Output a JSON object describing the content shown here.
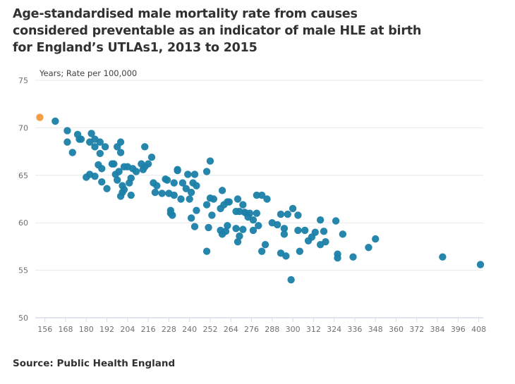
{
  "chart_data": {
    "type": "scatter",
    "title": "Age-standardised male mortality rate from causes considered preventable as an indicator of male HLE at birth for England’s UTLAs1, 2013 to 2015",
    "ylabel": "Years; Rate per 100,000",
    "xlabel": "",
    "xlim": [
      150,
      410
    ],
    "ylim": [
      50,
      75
    ],
    "x_ticks": [
      156,
      168,
      180,
      192,
      204,
      216,
      228,
      240,
      252,
      264,
      276,
      288,
      300,
      312,
      324,
      336,
      348,
      360,
      372,
      384,
      396,
      408
    ],
    "y_ticks": [
      50,
      55,
      60,
      65,
      70,
      75
    ],
    "grid": "horizontal",
    "colors": {
      "main": "#1b7fa8",
      "highlight": "#f39a3b"
    },
    "series": [
      {
        "color": "#f39a3b",
        "points": [
          [
            153,
            71.1
          ]
        ]
      },
      {
        "color": "#1b7fa8",
        "points": [
          [
            162,
            70.7
          ],
          [
            169,
            69.7
          ],
          [
            169,
            68.5
          ],
          [
            172,
            67.4
          ],
          [
            175,
            69.3
          ],
          [
            176,
            68.8
          ],
          [
            177,
            68.8
          ],
          [
            183,
            69.4
          ],
          [
            182,
            68.5
          ],
          [
            185,
            68.8
          ],
          [
            185,
            68.0
          ],
          [
            188,
            68.5
          ],
          [
            188,
            67.3
          ],
          [
            191,
            68.0
          ],
          [
            200,
            68.5
          ],
          [
            198,
            68.0
          ],
          [
            200,
            67.4
          ],
          [
            196,
            66.2
          ],
          [
            195,
            66.2
          ],
          [
            187,
            66.1
          ],
          [
            189,
            65.7
          ],
          [
            180,
            64.8
          ],
          [
            182,
            65.1
          ],
          [
            185,
            64.9
          ],
          [
            189,
            64.3
          ],
          [
            192,
            63.6
          ],
          [
            197,
            65.1
          ],
          [
            199,
            65.4
          ],
          [
            198,
            64.5
          ],
          [
            202,
            65.9
          ],
          [
            204,
            65.9
          ],
          [
            207,
            65.7
          ],
          [
            209,
            65.4
          ],
          [
            212,
            66.2
          ],
          [
            214,
            68.0
          ],
          [
            218,
            66.9
          ],
          [
            216,
            66.2
          ],
          [
            214,
            65.9
          ],
          [
            213,
            65.6
          ],
          [
            206,
            64.7
          ],
          [
            205,
            64.2
          ],
          [
            201,
            63.9
          ],
          [
            202,
            63.5
          ],
          [
            201,
            63.2
          ],
          [
            200,
            62.8
          ],
          [
            206,
            62.9
          ],
          [
            219,
            64.2
          ],
          [
            221,
            63.9
          ],
          [
            226,
            64.6
          ],
          [
            227,
            64.5
          ],
          [
            231,
            64.2
          ],
          [
            233,
            65.6
          ],
          [
            233,
            65.5
          ],
          [
            236,
            64.2
          ],
          [
            220,
            63.2
          ],
          [
            224,
            63.1
          ],
          [
            228,
            63.1
          ],
          [
            231,
            62.9
          ],
          [
            235,
            62.5
          ],
          [
            229,
            61.3
          ],
          [
            252,
            66.5
          ],
          [
            250,
            65.4
          ],
          [
            239,
            65.1
          ],
          [
            243,
            65.1
          ],
          [
            242,
            64.2
          ],
          [
            244,
            63.9
          ],
          [
            238,
            63.6
          ],
          [
            241,
            63.2
          ],
          [
            240,
            62.5
          ],
          [
            229,
            61.0
          ],
          [
            230,
            60.8
          ],
          [
            241,
            60.5
          ],
          [
            243,
            59.6
          ],
          [
            244,
            61.3
          ],
          [
            250,
            61.9
          ],
          [
            252,
            62.6
          ],
          [
            254,
            62.5
          ],
          [
            259,
            63.4
          ],
          [
            258,
            61.5
          ],
          [
            260,
            61.9
          ],
          [
            262,
            62.2
          ],
          [
            263,
            62.2
          ],
          [
            268,
            62.5
          ],
          [
            271,
            61.9
          ],
          [
            267,
            61.2
          ],
          [
            269,
            61.2
          ],
          [
            272,
            61.1
          ],
          [
            273,
            61.0
          ],
          [
            275,
            61.0
          ],
          [
            279,
            61.0
          ],
          [
            274,
            60.6
          ],
          [
            277,
            60.3
          ],
          [
            279,
            62.9
          ],
          [
            282,
            62.9
          ],
          [
            285,
            62.5
          ],
          [
            280,
            59.7
          ],
          [
            288,
            60.0
          ],
          [
            277,
            59.2
          ],
          [
            271,
            59.3
          ],
          [
            267,
            59.4
          ],
          [
            262,
            59.7
          ],
          [
            261,
            59.1
          ],
          [
            258,
            59.2
          ],
          [
            259,
            58.8
          ],
          [
            251,
            59.5
          ],
          [
            253,
            60.8
          ],
          [
            269,
            58.6
          ],
          [
            268,
            58.0
          ],
          [
            284,
            57.7
          ],
          [
            282,
            57.0
          ],
          [
            250,
            57.0
          ],
          [
            299,
            54.0
          ],
          [
            300,
            61.5
          ],
          [
            293,
            60.9
          ],
          [
            297,
            60.9
          ],
          [
            303,
            60.8
          ],
          [
            291,
            59.8
          ],
          [
            295,
            59.4
          ],
          [
            295,
            58.8
          ],
          [
            303,
            59.2
          ],
          [
            307,
            59.2
          ],
          [
            313,
            59.0
          ],
          [
            311,
            58.5
          ],
          [
            309,
            58.1
          ],
          [
            318,
            59.1
          ],
          [
            319,
            58.0
          ],
          [
            316,
            57.7
          ],
          [
            316,
            60.3
          ],
          [
            325,
            60.2
          ],
          [
            329,
            58.8
          ],
          [
            293,
            56.8
          ],
          [
            296,
            56.5
          ],
          [
            304,
            57.0
          ],
          [
            326,
            56.7
          ],
          [
            326,
            56.3
          ],
          [
            335,
            56.4
          ],
          [
            344,
            57.4
          ],
          [
            348,
            58.3
          ],
          [
            387,
            56.4
          ],
          [
            409,
            55.6
          ]
        ]
      }
    ]
  },
  "source": "Source: Public Health England"
}
